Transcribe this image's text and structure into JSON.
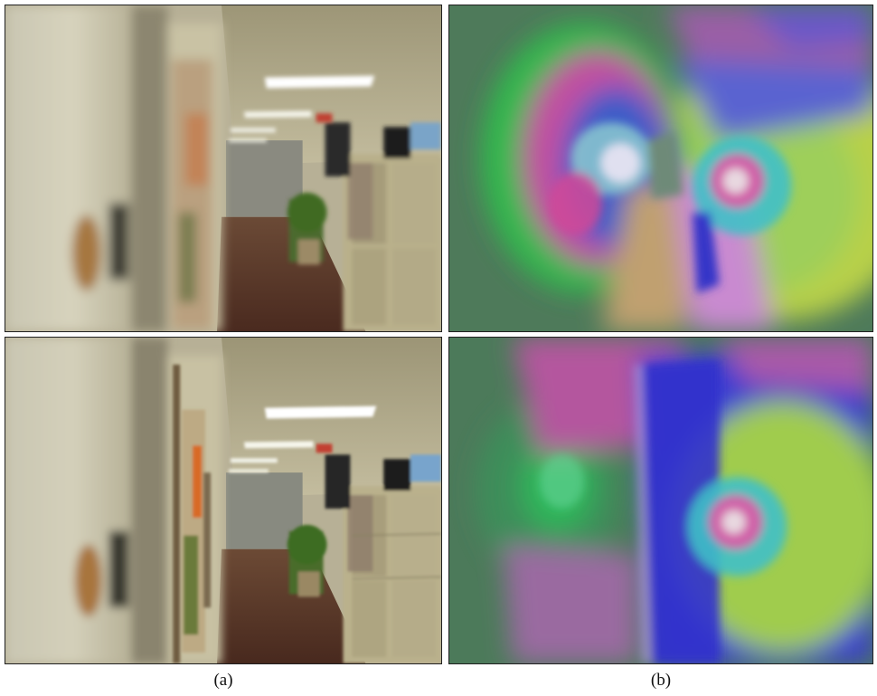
{
  "figure": {
    "captions": {
      "a": "(a)",
      "b": "(b)"
    },
    "panels": [
      {
        "id": "a-top",
        "content": "blurred-office-hallway-photo"
      },
      {
        "id": "b-top",
        "content": "color-coded-motion-field"
      },
      {
        "id": "a-bottom",
        "content": "deblurred-office-hallway-photo"
      },
      {
        "id": "b-bottom",
        "content": "color-coded-motion-field"
      }
    ]
  }
}
